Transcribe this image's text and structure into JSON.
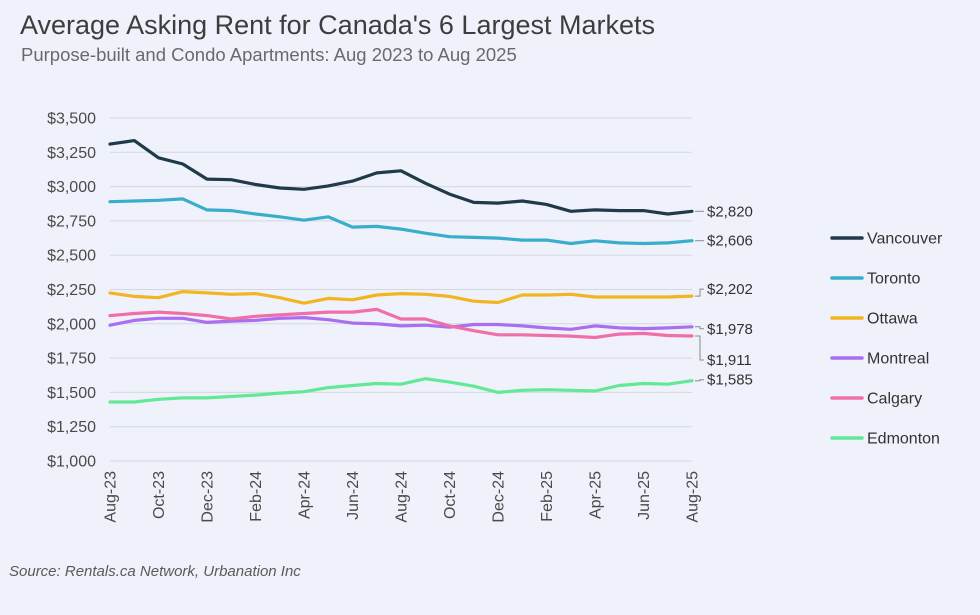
{
  "header": {
    "title": "Average Asking Rent for Canada's 6 Largest Markets",
    "subtitle": "Purpose-built and Condo Apartments: Aug 2023 to Aug 2025"
  },
  "footer": {
    "source": "Source: Rentals.ca Network, Urbanation Inc"
  },
  "chart_data": {
    "type": "line",
    "title": "Average Asking Rent for Canada's 6 Largest Markets",
    "subtitle": "Purpose-built and Condo Apartments: Aug 2023 to Aug 2025",
    "xlabel": "",
    "ylabel": "",
    "ylim": [
      1000,
      3500
    ],
    "yticks": [
      1000,
      1250,
      1500,
      1750,
      2000,
      2250,
      2500,
      2750,
      3000,
      3250,
      3500
    ],
    "ytick_labels": [
      "$1,000",
      "$1,250",
      "$1,500",
      "$1,750",
      "$2,000",
      "$2,250",
      "$2,500",
      "$2,750",
      "$3,000",
      "$3,250",
      "$3,500"
    ],
    "x": [
      "Aug-23",
      "Sep-23",
      "Oct-23",
      "Nov-23",
      "Dec-23",
      "Jan-24",
      "Feb-24",
      "Mar-24",
      "Apr-24",
      "May-24",
      "Jun-24",
      "Jul-24",
      "Aug-24",
      "Sep-24",
      "Oct-24",
      "Nov-24",
      "Dec-24",
      "Jan-25",
      "Feb-25",
      "Mar-25",
      "Apr-25",
      "May-25",
      "Jun-25",
      "Jul-25",
      "Aug-25"
    ],
    "xtick_labels": [
      "Aug-23",
      "Oct-23",
      "Dec-23",
      "Feb-24",
      "Apr-24",
      "Jun-24",
      "Aug-24",
      "Oct-24",
      "Dec-24",
      "Feb-25",
      "Apr-25",
      "Jun-25",
      "Aug-25"
    ],
    "grid": "horizontal",
    "legend_position": "right",
    "series": [
      {
        "name": "Vancouver",
        "color": "#1f3a48",
        "end_label": "$2,820",
        "values": [
          3310,
          3335,
          3210,
          3165,
          3055,
          3050,
          3015,
          2990,
          2980,
          3005,
          3040,
          3100,
          3115,
          3025,
          2945,
          2885,
          2880,
          2895,
          2870,
          2820,
          2830,
          2825,
          2825,
          2800,
          2820
        ]
      },
      {
        "name": "Toronto",
        "color": "#3aaccc",
        "end_label": "$2,606",
        "values": [
          2890,
          2895,
          2900,
          2910,
          2830,
          2825,
          2800,
          2780,
          2755,
          2780,
          2705,
          2710,
          2690,
          2660,
          2635,
          2630,
          2625,
          2610,
          2610,
          2585,
          2605,
          2590,
          2585,
          2590,
          2606
        ]
      },
      {
        "name": "Ottawa",
        "color": "#f2b521",
        "end_label": "$2,202",
        "values": [
          2225,
          2200,
          2190,
          2235,
          2225,
          2215,
          2220,
          2190,
          2150,
          2185,
          2175,
          2210,
          2220,
          2215,
          2200,
          2165,
          2155,
          2210,
          2210,
          2215,
          2195,
          2195,
          2195,
          2195,
          2202
        ]
      },
      {
        "name": "Montreal",
        "color": "#a96ef2",
        "end_label": "$1,978",
        "values": [
          1990,
          2025,
          2040,
          2040,
          2010,
          2020,
          2025,
          2040,
          2045,
          2030,
          2005,
          2000,
          1985,
          1990,
          1975,
          1995,
          1995,
          1985,
          1970,
          1960,
          1985,
          1970,
          1965,
          1970,
          1978
        ]
      },
      {
        "name": "Calgary",
        "color": "#f06fa8",
        "end_label": "$1,911",
        "values": [
          2060,
          2075,
          2085,
          2075,
          2060,
          2035,
          2055,
          2065,
          2075,
          2085,
          2085,
          2105,
          2035,
          2035,
          1985,
          1950,
          1920,
          1920,
          1915,
          1910,
          1900,
          1925,
          1930,
          1915,
          1911
        ]
      },
      {
        "name": "Edmonton",
        "color": "#62e896",
        "end_label": "$1,585",
        "values": [
          1430,
          1430,
          1450,
          1460,
          1460,
          1470,
          1480,
          1495,
          1505,
          1535,
          1550,
          1565,
          1560,
          1600,
          1575,
          1545,
          1500,
          1515,
          1520,
          1515,
          1510,
          1550,
          1565,
          1560,
          1585
        ]
      }
    ]
  }
}
